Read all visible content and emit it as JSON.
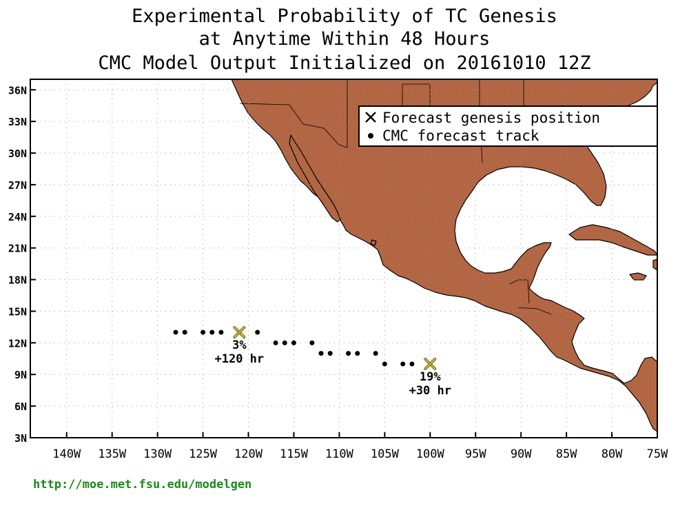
{
  "title": {
    "line1": "Experimental Probability of TC Genesis",
    "line2": "at Anytime Within 48 Hours",
    "line3": "CMC Model Output Initialized on 20161010 12Z"
  },
  "map": {
    "lon_range": [
      -144,
      -75
    ],
    "lat_range": [
      3,
      37
    ],
    "land_color": "#b26644",
    "grid": true,
    "lat_ticks": [
      {
        "value": 3,
        "label": "3N"
      },
      {
        "value": 6,
        "label": "6N"
      },
      {
        "value": 9,
        "label": "9N"
      },
      {
        "value": 12,
        "label": "12N"
      },
      {
        "value": 15,
        "label": "15N"
      },
      {
        "value": 18,
        "label": "18N"
      },
      {
        "value": 21,
        "label": "21N"
      },
      {
        "value": 24,
        "label": "24N"
      },
      {
        "value": 27,
        "label": "27N"
      },
      {
        "value": 30,
        "label": "30N"
      },
      {
        "value": 33,
        "label": "33N"
      },
      {
        "value": 36,
        "label": "36N"
      }
    ],
    "lon_ticks": [
      {
        "value": -140,
        "label": "140W"
      },
      {
        "value": -135,
        "label": "135W"
      },
      {
        "value": -130,
        "label": "130W"
      },
      {
        "value": -125,
        "label": "125W"
      },
      {
        "value": -120,
        "label": "120W"
      },
      {
        "value": -115,
        "label": "115W"
      },
      {
        "value": -110,
        "label": "110W"
      },
      {
        "value": -105,
        "label": "105W"
      },
      {
        "value": -100,
        "label": "100W"
      },
      {
        "value": -95,
        "label": "95W"
      },
      {
        "value": -90,
        "label": "90W"
      },
      {
        "value": -85,
        "label": "85W"
      },
      {
        "value": -80,
        "label": "80W"
      },
      {
        "value": -75,
        "label": "75W"
      }
    ]
  },
  "legend": {
    "placement": "top-right",
    "genesis_label": "Forecast genesis position",
    "track_label": "CMC forecast track"
  },
  "chart_data": {
    "type": "scatter",
    "xlabel": "",
    "ylabel": "",
    "xlim": [
      -144,
      -75
    ],
    "ylim": [
      3,
      37
    ],
    "series": [
      {
        "name": "CMC forecast track",
        "marker": "dot",
        "color": "#000000",
        "points": [
          {
            "lon": -128.0,
            "lat": 13
          },
          {
            "lon": -127.0,
            "lat": 13
          },
          {
            "lon": -125.0,
            "lat": 13
          },
          {
            "lon": -124.0,
            "lat": 13
          },
          {
            "lon": -123.0,
            "lat": 13
          },
          {
            "lon": -119.0,
            "lat": 13
          },
          {
            "lon": -117.0,
            "lat": 12
          },
          {
            "lon": -116.0,
            "lat": 12
          },
          {
            "lon": -115.0,
            "lat": 12
          },
          {
            "lon": -113.0,
            "lat": 12
          },
          {
            "lon": -112.0,
            "lat": 11
          },
          {
            "lon": -111.0,
            "lat": 11
          },
          {
            "lon": -109.0,
            "lat": 11
          },
          {
            "lon": -108.0,
            "lat": 11
          },
          {
            "lon": -106.0,
            "lat": 11
          },
          {
            "lon": -105.0,
            "lat": 10
          },
          {
            "lon": -103.0,
            "lat": 10
          },
          {
            "lon": -102.0,
            "lat": 10
          }
        ]
      },
      {
        "name": "Forecast genesis position",
        "marker": "x",
        "color": "#d4c20a",
        "points": [
          {
            "lon": -121.0,
            "lat": 13,
            "probability": "3%",
            "lead": "+120 hr"
          },
          {
            "lon": -100.0,
            "lat": 10,
            "probability": "19%",
            "lead": "+30 hr"
          }
        ]
      }
    ]
  },
  "footer": {
    "url": "http://moe.met.fsu.edu/modelgen"
  }
}
